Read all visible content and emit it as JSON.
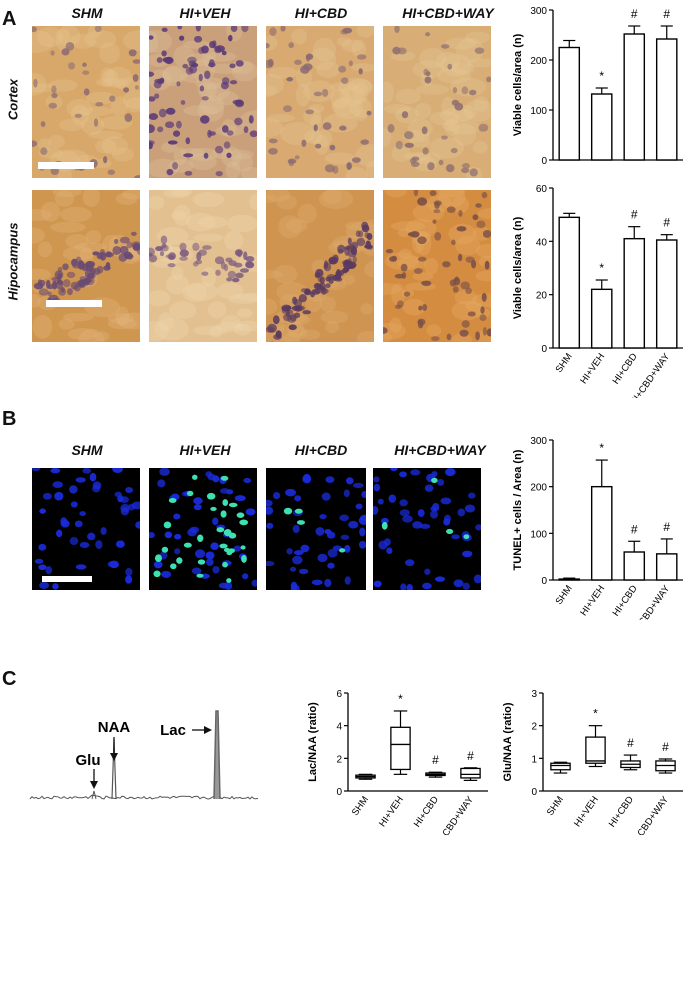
{
  "panels": {
    "A": "A",
    "B": "B",
    "C": "C"
  },
  "groups": [
    "SHM",
    "HI+VEH",
    "HI+CBD",
    "HI+CBD+WAY"
  ],
  "rows": {
    "cortex": "Cortex",
    "hippocampus": "Hipocampus"
  },
  "spectrum": {
    "naa": "NAA",
    "glu": "Glu",
    "lac": "Lac"
  },
  "colors": {
    "tissue_cortex": "#d9a86a",
    "tissue_hvh": "#d7b494",
    "stain_violet": "#5a3a78",
    "tunel_bg": "#000000",
    "dapi": "#1a2bd9",
    "tunel_pos": "#3de0b0"
  },
  "chart_data": [
    {
      "id": "cortex_viable",
      "type": "bar",
      "categories": [
        "SHM",
        "HI+VEH",
        "HI+CBD",
        "HI+CBD+WAY"
      ],
      "values": [
        225,
        132,
        252,
        242
      ],
      "errors": [
        14,
        12,
        16,
        26
      ],
      "annotations": [
        "",
        "*",
        "#",
        "#"
      ],
      "ylabel": "Viable cells/area (n)",
      "ylim": [
        0,
        300
      ],
      "yticks": [
        0,
        100,
        200,
        300
      ],
      "show_x_labels": false
    },
    {
      "id": "hippocampus_viable",
      "type": "bar",
      "categories": [
        "SHM",
        "HI+VEH",
        "HI+CBD",
        "HI+CBD+WAY"
      ],
      "values": [
        49,
        22,
        41,
        40.5
      ],
      "errors": [
        1.5,
        3.5,
        4.5,
        2
      ],
      "annotations": [
        "",
        "*",
        "#",
        "#"
      ],
      "ylabel": "Viable cells/area (n)",
      "ylim": [
        0,
        60
      ],
      "yticks": [
        0,
        20,
        40,
        60
      ],
      "show_x_labels": true
    },
    {
      "id": "tunel",
      "type": "bar",
      "categories": [
        "SHM",
        "HI+VEH",
        "HI+CBD",
        "HI+CBD+WAY"
      ],
      "values": [
        2,
        200,
        60,
        56
      ],
      "errors": [
        2,
        57,
        23,
        32
      ],
      "annotations": [
        "",
        "*",
        "#",
        "#"
      ],
      "ylabel": "TUNEL+ cells / Area (n)",
      "ylim": [
        0,
        300
      ],
      "yticks": [
        0,
        100,
        200,
        300
      ],
      "show_x_labels": true
    },
    {
      "id": "lac_naa",
      "type": "boxplot",
      "categories": [
        "SHM",
        "HI+VEH",
        "HI+CBD",
        "HI+CBD+WAY"
      ],
      "boxes": [
        {
          "min": 0.72,
          "q1": 0.8,
          "median": 0.88,
          "q3": 0.97,
          "max": 1.02
        },
        {
          "min": 1.02,
          "q1": 1.32,
          "median": 2.85,
          "q3": 3.9,
          "max": 4.9
        },
        {
          "min": 0.85,
          "q1": 0.95,
          "median": 1.02,
          "q3": 1.1,
          "max": 1.15
        },
        {
          "min": 0.65,
          "q1": 0.8,
          "median": 1.02,
          "q3": 1.38,
          "max": 1.42
        }
      ],
      "annotations": [
        "",
        "*",
        "#",
        "#"
      ],
      "ylabel": "Lac/NAA (ratio)",
      "ylim": [
        0,
        6
      ],
      "yticks": [
        0,
        2,
        4,
        6
      ]
    },
    {
      "id": "glu_naa",
      "type": "boxplot",
      "categories": [
        "SHM",
        "HI+VEH",
        "HI+CBD",
        "HI+CBD+WAY"
      ],
      "boxes": [
        {
          "min": 0.55,
          "q1": 0.65,
          "median": 0.78,
          "q3": 0.85,
          "max": 0.88
        },
        {
          "min": 0.75,
          "q1": 0.85,
          "median": 0.92,
          "q3": 1.65,
          "max": 2.0
        },
        {
          "min": 0.65,
          "q1": 0.72,
          "median": 0.82,
          "q3": 0.92,
          "max": 1.1
        },
        {
          "min": 0.55,
          "q1": 0.62,
          "median": 0.78,
          "q3": 0.92,
          "max": 0.98
        }
      ],
      "annotations": [
        "",
        "*",
        "#",
        "#"
      ],
      "ylabel": "Glu/NAA (ratio)",
      "ylim": [
        0,
        3
      ],
      "yticks": [
        0,
        1,
        2,
        3
      ]
    }
  ]
}
